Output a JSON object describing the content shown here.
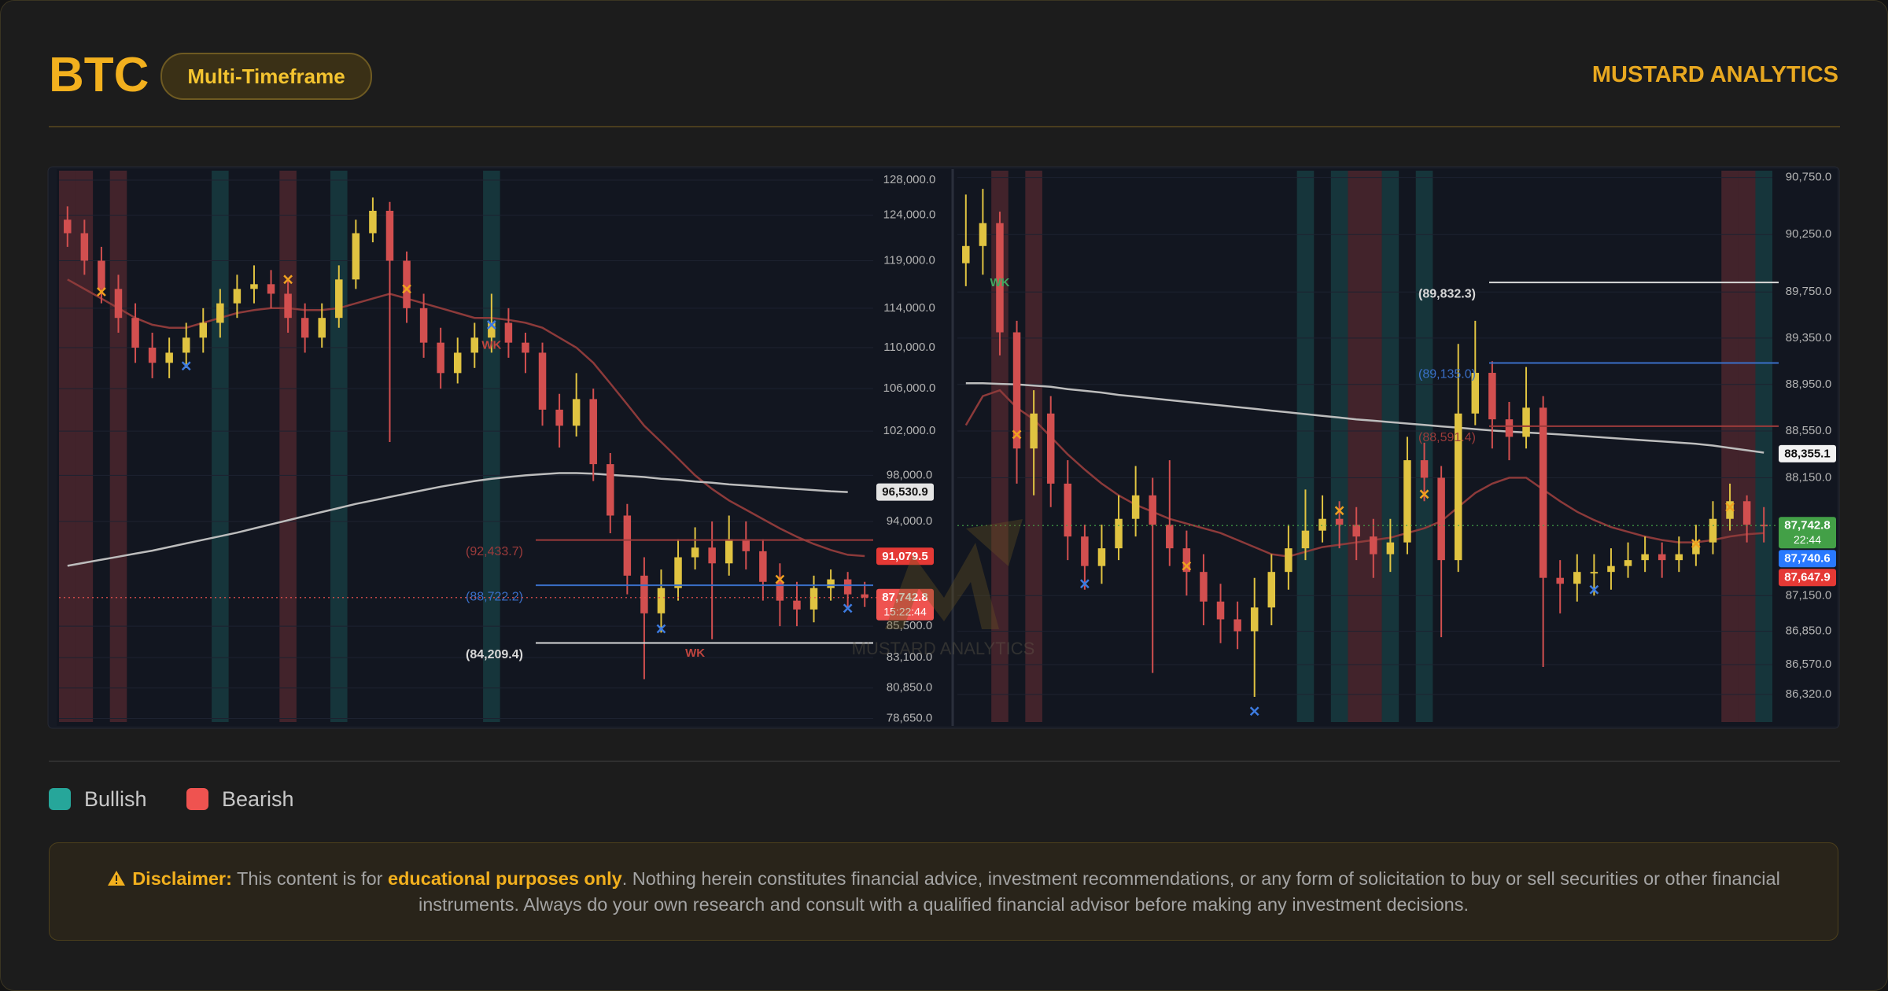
{
  "header": {
    "title": "BTC",
    "badge": "Multi-Timeframe",
    "brand": "MUSTARD ANALYTICS"
  },
  "watermark": "MUSTARD ANALYTICS",
  "legend": [
    {
      "name": "Bullish",
      "color": "#26a69a"
    },
    {
      "name": "Bearish",
      "color": "#ef5350"
    }
  ],
  "disclaimer": {
    "label": "Disclaimer:",
    "text_1": " This content is for ",
    "emphasis": "educational purposes only",
    "text_2": ". Nothing herein constitutes financial advice, investment recommendations, or any form of solicitation to buy or sell securities or other financial instruments. Always do your own research and consult with a qualified financial advisor before making any investment decisions."
  },
  "chart_data": [
    {
      "type": "candlestick",
      "log": true,
      "grid": true,
      "up_color": "#e0c341",
      "down_color": "#d24f4f",
      "ylim": [
        78400,
        129100
      ],
      "yticks": [
        {
          "value": 128000,
          "label": "128,000.0"
        },
        {
          "value": 124000,
          "label": "124,000.0"
        },
        {
          "value": 119000,
          "label": "119,000.0"
        },
        {
          "value": 114000,
          "label": "114,000.0"
        },
        {
          "value": 110000,
          "label": "110,000.0"
        },
        {
          "value": 106000,
          "label": "106,000.0"
        },
        {
          "value": 102000,
          "label": "102,000.0"
        },
        {
          "value": 98000,
          "label": "98,000.0"
        },
        {
          "value": 94000,
          "label": "94,000.0"
        },
        {
          "value": 85500,
          "label": "85,500.0"
        },
        {
          "value": 83100,
          "label": "83,100.0"
        },
        {
          "value": 80850,
          "label": "80,850.0"
        },
        {
          "value": 78650,
          "label": "78,650.0"
        }
      ],
      "open": [
        123500,
        122000,
        119000,
        116000,
        113000,
        110000,
        108500,
        109500,
        111000,
        112500,
        114500,
        116000,
        116500,
        115500,
        113000,
        111000,
        113000,
        117000,
        122000,
        124500,
        119000,
        114000,
        110500,
        107500,
        109500,
        111000,
        112500,
        110500,
        109500,
        104000,
        102500,
        105000,
        99000,
        94500,
        89500,
        86500,
        88500,
        91000,
        91800,
        90500,
        92500,
        91500,
        89000,
        87500,
        86800,
        88500,
        89200,
        88000
      ],
      "high": [
        125000,
        123500,
        120500,
        117500,
        114500,
        111500,
        111000,
        112500,
        114000,
        116000,
        117500,
        118500,
        118000,
        117000,
        114500,
        114500,
        118500,
        123500,
        126000,
        125500,
        120000,
        115500,
        112000,
        111000,
        112500,
        115500,
        114000,
        111500,
        110500,
        105500,
        107500,
        106000,
        100000,
        95500,
        91000,
        90000,
        92500,
        93500,
        94000,
        94500,
        94000,
        92500,
        90500,
        89000,
        89500,
        90000,
        89800,
        89000
      ],
      "low": [
        120500,
        117500,
        114500,
        111500,
        108500,
        107000,
        107000,
        108000,
        109500,
        111000,
        113000,
        114500,
        114000,
        111500,
        109500,
        110000,
        112000,
        116000,
        121000,
        101000,
        112500,
        109000,
        106000,
        106500,
        108000,
        109500,
        109000,
        107500,
        102500,
        100500,
        101500,
        97500,
        93000,
        88000,
        81500,
        85000,
        87500,
        90000,
        84500,
        89500,
        90000,
        87500,
        85500,
        85500,
        85800,
        87500,
        87000,
        87000
      ],
      "close": [
        122000,
        119000,
        116000,
        113000,
        110000,
        108500,
        109500,
        111000,
        112500,
        114500,
        116000,
        116500,
        115500,
        113000,
        111000,
        113000,
        117000,
        122000,
        124500,
        119000,
        114000,
        110500,
        107500,
        109500,
        111000,
        112500,
        110500,
        109500,
        104000,
        102500,
        105000,
        99000,
        94500,
        89500,
        86500,
        88500,
        91000,
        91800,
        90500,
        92500,
        91500,
        89000,
        87500,
        86800,
        88500,
        89200,
        88000,
        87742.8
      ],
      "lines": [
        {
          "color": "#8c3a3a",
          "values": [
            117000,
            116000,
            115000,
            114000,
            113000,
            112300,
            112000,
            112000,
            112500,
            113000,
            113500,
            113800,
            114000,
            114000,
            113800,
            113800,
            114000,
            114500,
            115000,
            115500,
            115000,
            114500,
            114000,
            113500,
            113000,
            113000,
            112800,
            112500,
            112000,
            111000,
            110000,
            108500,
            106500,
            104500,
            102500,
            101000,
            99500,
            98000,
            96800,
            95800,
            95000,
            94200,
            93400,
            92700,
            92100,
            91600,
            91200,
            91100
          ]
        },
        {
          "color": "#bdbdbd",
          "values": [
            90300,
            90550,
            90800,
            91050,
            91300,
            91550,
            91850,
            92150,
            92450,
            92750,
            93050,
            93400,
            93750,
            94100,
            94450,
            94800,
            95150,
            95500,
            95800,
            96100,
            96400,
            96700,
            97000,
            97250,
            97500,
            97700,
            97850,
            98000,
            98100,
            98200,
            98200,
            98150,
            98050,
            97950,
            97850,
            97700,
            97600,
            97450,
            97350,
            97200,
            97100,
            97000,
            96900,
            96800,
            96700,
            96600,
            96530,
            null
          ]
        }
      ],
      "bullish_bands": [
        9,
        16,
        25
      ],
      "bearish_bands": [
        0,
        1,
        3,
        13
      ],
      "markers": [
        {
          "index": 2,
          "price": 115700,
          "color": "#f0a020"
        },
        {
          "index": 13,
          "price": 117000,
          "color": "#f0a020"
        },
        {
          "index": 20,
          "price": 116000,
          "color": "#f0a020"
        },
        {
          "index": 7,
          "price": 108200,
          "color": "#3d7be0"
        },
        {
          "index": 25,
          "price": 112300,
          "color": "#3d7be0"
        },
        {
          "index": 35,
          "price": 85300,
          "color": "#3d7be0"
        },
        {
          "index": 42,
          "price": 89200,
          "color": "#f0a020"
        },
        {
          "index": 46,
          "price": 86900,
          "color": "#3d7be0"
        }
      ],
      "annotations": [
        {
          "text": "WK",
          "index": 25,
          "price": 110200,
          "color": "#c0453f"
        },
        {
          "text": "WK",
          "index": 37,
          "price": 83400,
          "color": "#c0453f"
        }
      ],
      "levels": [
        {
          "value": 92433.7,
          "label": "(92,433.7)",
          "color": "#9c3b3b"
        },
        {
          "value": 88722.2,
          "label": "(88,722.2)",
          "color": "#3a6fc8"
        },
        {
          "value": 84209.4,
          "label": "(84,209.4)",
          "color": "#d8d8d8"
        }
      ],
      "tags": [
        {
          "value": 96530.9,
          "label": "96,530.9",
          "color": "#e4e4e4"
        },
        {
          "value": 91079.5,
          "label": "91,079.5",
          "color": "#e53935"
        },
        {
          "value": 87742.8,
          "label": "87,742.8",
          "sub": "15:22:44",
          "color": "#ef5350"
        }
      ]
    },
    {
      "type": "candlestick",
      "log": true,
      "grid": true,
      "up_color": "#e0c341",
      "down_color": "#d24f4f",
      "ylim": [
        86090,
        90810
      ],
      "yticks": [
        {
          "value": 90750,
          "label": "90,750.0"
        },
        {
          "value": 90250,
          "label": "90,250.0"
        },
        {
          "value": 89750,
          "label": "89,750.0"
        },
        {
          "value": 89350,
          "label": "89,350.0"
        },
        {
          "value": 88950,
          "label": "88,950.0"
        },
        {
          "value": 88550,
          "label": "88,550.0"
        },
        {
          "value": 88150,
          "label": "88,150.0"
        },
        {
          "value": 87150,
          "label": "87,150.0"
        },
        {
          "value": 86850,
          "label": "86,850.0"
        },
        {
          "value": 86570,
          "label": "86,570.0"
        },
        {
          "value": 86320,
          "label": "86,320.0"
        }
      ],
      "open": [
        90000,
        90150,
        90350,
        89400,
        88400,
        88700,
        88100,
        87650,
        87400,
        87550,
        87800,
        88000,
        87750,
        87550,
        87350,
        87100,
        86950,
        86850,
        87050,
        87350,
        87550,
        87700,
        87800,
        87750,
        87650,
        87500,
        87600,
        88300,
        88150,
        87450,
        88700,
        89050,
        88650,
        88500,
        88750,
        87300,
        87250,
        87350,
        87350,
        87400,
        87450,
        87500,
        87450,
        87500,
        87600,
        87800,
        87950,
        87750
      ],
      "high": [
        90600,
        90650,
        90450,
        89500,
        88900,
        88850,
        88300,
        87750,
        87750,
        88000,
        88250,
        88150,
        88300,
        87700,
        87500,
        87250,
        87100,
        87300,
        87500,
        87750,
        88050,
        88000,
        87950,
        87900,
        87800,
        87800,
        88500,
        88450,
        88250,
        89300,
        89500,
        89150,
        88800,
        89100,
        88850,
        87450,
        87500,
        87500,
        87550,
        87600,
        87650,
        87600,
        87650,
        87750,
        87950,
        88100,
        88000,
        87900
      ],
      "low": [
        89800,
        89900,
        89200,
        88100,
        88000,
        87900,
        87450,
        87200,
        87250,
        87450,
        87650,
        86500,
        87400,
        87150,
        86900,
        86750,
        86700,
        86300,
        86900,
        87200,
        87450,
        87600,
        87550,
        87450,
        87300,
        87350,
        87500,
        87950,
        86800,
        87350,
        88600,
        88400,
        88300,
        88400,
        86550,
        87000,
        87100,
        87150,
        87200,
        87300,
        87350,
        87300,
        87350,
        87400,
        87500,
        87700,
        87600,
        87600
      ],
      "close": [
        90150,
        90350,
        89400,
        88400,
        88700,
        88100,
        87650,
        87400,
        87550,
        87800,
        88000,
        87750,
        87550,
        87350,
        87100,
        86950,
        86850,
        87050,
        87350,
        87550,
        87700,
        87800,
        87750,
        87650,
        87500,
        87600,
        88300,
        88150,
        87450,
        88700,
        89050,
        88650,
        88500,
        88750,
        87300,
        87250,
        87350,
        87350,
        87400,
        87450,
        87500,
        87450,
        87500,
        87600,
        87800,
        87950,
        87750,
        87742.8
      ],
      "lines": [
        {
          "color": "#8c3a3a",
          "values": [
            88600,
            88850,
            88900,
            88750,
            88650,
            88500,
            88350,
            88220,
            88100,
            88000,
            87920,
            87860,
            87800,
            87760,
            87720,
            87680,
            87620,
            87560,
            87500,
            87480,
            87520,
            87560,
            87580,
            87600,
            87620,
            87640,
            87680,
            87720,
            87780,
            87900,
            88020,
            88100,
            88150,
            88150,
            88050,
            87950,
            87860,
            87790,
            87730,
            87690,
            87650,
            87620,
            87600,
            87600,
            87620,
            87650,
            87670,
            87680
          ]
        },
        {
          "color": "#bdbdbd",
          "values": [
            88960,
            88960,
            88955,
            88950,
            88940,
            88930,
            88910,
            88895,
            88880,
            88860,
            88845,
            88830,
            88815,
            88800,
            88785,
            88770,
            88755,
            88740,
            88725,
            88710,
            88695,
            88680,
            88665,
            88650,
            88638,
            88626,
            88614,
            88602,
            88590,
            88578,
            88566,
            88554,
            88545,
            88537,
            88529,
            88520,
            88510,
            88500,
            88490,
            88480,
            88470,
            88460,
            88450,
            88440,
            88425,
            88405,
            88385,
            88365
          ]
        }
      ],
      "bullish_bands": [
        20,
        22,
        25,
        27,
        47
      ],
      "bearish_bands": [
        2,
        4,
        23,
        24,
        45,
        46
      ],
      "markers": [
        {
          "index": 3,
          "price": 88520,
          "color": "#f0a020"
        },
        {
          "index": 7,
          "price": 87250,
          "color": "#3d7be0"
        },
        {
          "index": 13,
          "price": 87400,
          "color": "#f0a020"
        },
        {
          "index": 17,
          "price": 86180,
          "color": "#3d7be0"
        },
        {
          "index": 22,
          "price": 87870,
          "color": "#f0a020"
        },
        {
          "index": 27,
          "price": 88010,
          "color": "#f0a020"
        },
        {
          "index": 37,
          "price": 87200,
          "color": "#3d7be0"
        },
        {
          "index": 43,
          "price": 87590,
          "color": "#f0a020"
        },
        {
          "index": 45,
          "price": 87900,
          "color": "#f0a020"
        }
      ],
      "annotations": [
        {
          "text": "WK",
          "index": 2,
          "price": 89825,
          "color": "#3fa860"
        }
      ],
      "levels": [
        {
          "value": 89832.3,
          "label": "(89,832.3)",
          "color": "#d8d8d8"
        },
        {
          "value": 89135.0,
          "label": "(89,135.0)",
          "color": "#3a6fc8"
        },
        {
          "value": 88591.4,
          "label": "(88,591.4)",
          "color": "#9c3b3b"
        }
      ],
      "tags": [
        {
          "value": 88355.1,
          "label": "88,355.1",
          "color": "#f2f2f2"
        },
        {
          "value": 87742.8,
          "label": "87,742.8",
          "sub": "22:44",
          "color": "#43a047"
        },
        {
          "value": 87740.6,
          "label": "87,740.6",
          "color": "#2979ff"
        },
        {
          "value": 87647.9,
          "label": "87,647.9",
          "color": "#e53935"
        }
      ]
    }
  ]
}
